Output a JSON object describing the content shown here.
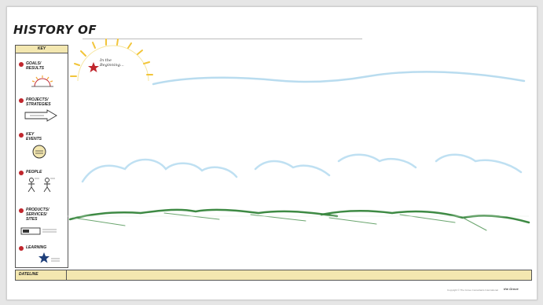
{
  "title": "HISTORY OF",
  "key": {
    "header": "KEY",
    "items": [
      {
        "label": "GOALS/\nRESULTS",
        "icon": "sunrise-icon"
      },
      {
        "label": "PROJECTS/\nSTRATEGIES",
        "icon": "arrow-icon"
      },
      {
        "label": "KEY\nEVENTS",
        "icon": "event-circle-icon"
      },
      {
        "label": "PEOPLE",
        "icon": "people-icon"
      },
      {
        "label": "PRODUCTS/\nSERVICES/\nSITES",
        "icon": "product-box-icon"
      },
      {
        "label": "LEARNING",
        "icon": "star-icon"
      }
    ]
  },
  "beginning": {
    "label": "In the\nBeginning..."
  },
  "timeline": {
    "label": "DATELINE"
  },
  "footer": {
    "copyright": "Copyright © The Grove Consultants International",
    "brand": "the Grove"
  },
  "colors": {
    "sky": "#b9dcef",
    "cloud": "#bfe0f2",
    "hills": "#3e8a44",
    "sun": "#f2c53a",
    "star": "#c0262d",
    "key_fill": "#f3e7b0"
  }
}
